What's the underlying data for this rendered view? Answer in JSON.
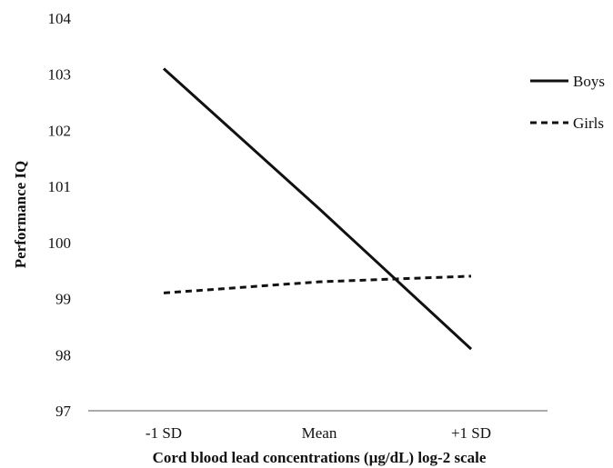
{
  "chart_data": {
    "type": "line",
    "categories": [
      "-1 SD",
      "Mean",
      "+1 SD"
    ],
    "series": [
      {
        "name": "Boys",
        "values": [
          103.1,
          100.6,
          98.1
        ],
        "line_style": "solid",
        "color": "#111111"
      },
      {
        "name": "Girls",
        "values": [
          99.1,
          99.3,
          99.4
        ],
        "line_style": "dashed",
        "color": "#111111"
      }
    ],
    "title": "",
    "xlabel": "Cord blood lead concentrations (µg/dL) log-2 scale",
    "ylabel": "Performance IQ",
    "ylim": [
      97,
      104
    ],
    "yticks": [
      "97",
      "98",
      "99",
      "100",
      "101",
      "102",
      "103",
      "104"
    ],
    "grid": false,
    "legend_position": "top-right"
  }
}
